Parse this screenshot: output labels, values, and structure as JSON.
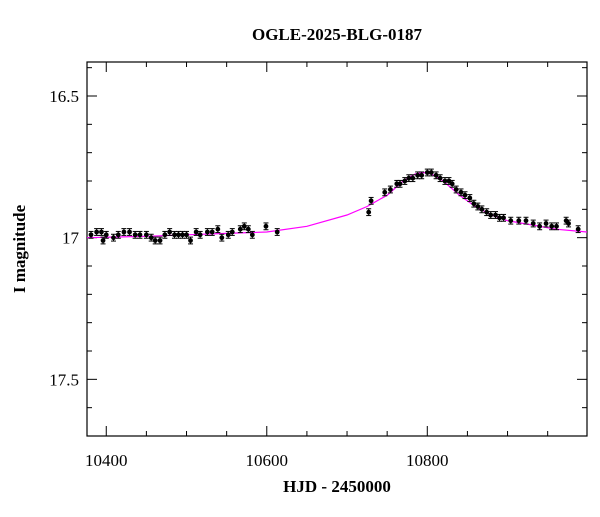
{
  "chart_data": {
    "type": "scatter",
    "title": "OGLE-2025-BLG-0187",
    "xlabel": "HJD - 2450000",
    "ylabel": "I magnitude",
    "xlim": [
      10376,
      10999
    ],
    "ylim": [
      17.7,
      16.38
    ],
    "xticks": [
      10400,
      10600,
      10800
    ],
    "xminor": [
      10450,
      10500,
      10550,
      10650,
      10700,
      10750,
      10850,
      10900,
      10950
    ],
    "yticks": [
      16.5,
      17,
      17.5
    ],
    "yminor": [
      16.4,
      16.6,
      16.7,
      16.8,
      16.9,
      17.1,
      17.2,
      17.3,
      17.4,
      17.6
    ],
    "points": {
      "color": "#000000",
      "error": 0.012,
      "x": [
        10381,
        10388,
        10394,
        10396,
        10400,
        10409,
        10415,
        10422,
        10429,
        10436,
        10442,
        10450,
        10456,
        10461,
        10467,
        10473,
        10479,
        10485,
        10490,
        10495,
        10500,
        10505,
        10512,
        10517,
        10526,
        10532,
        10539,
        10544,
        10552,
        10557,
        10567,
        10572,
        10577,
        10582,
        10599,
        10613,
        10727,
        10730,
        10747,
        10754,
        10762,
        10766,
        10772,
        10777,
        10782,
        10788,
        10793,
        10800,
        10805,
        10811,
        10816,
        10822,
        10827,
        10831,
        10836,
        10842,
        10847,
        10853,
        10858,
        10863,
        10868,
        10874,
        10879,
        10885,
        10890,
        10895,
        10904,
        10914,
        10923,
        10932,
        10940,
        10948,
        10955,
        10961,
        10973,
        10976,
        10988
      ],
      "values": [
        16.99,
        16.98,
        16.98,
        17.01,
        16.99,
        17.0,
        16.99,
        16.98,
        16.98,
        16.99,
        16.99,
        16.99,
        17.0,
        17.01,
        17.01,
        16.99,
        16.98,
        16.99,
        16.99,
        16.99,
        16.99,
        17.01,
        16.98,
        16.99,
        16.98,
        16.98,
        16.97,
        17.0,
        16.99,
        16.98,
        16.97,
        16.96,
        16.97,
        16.99,
        16.96,
        16.98,
        16.91,
        16.87,
        16.84,
        16.83,
        16.81,
        16.81,
        16.8,
        16.79,
        16.79,
        16.78,
        16.78,
        16.77,
        16.77,
        16.78,
        16.79,
        16.8,
        16.8,
        16.81,
        16.83,
        16.84,
        16.85,
        16.86,
        16.88,
        16.89,
        16.9,
        16.91,
        16.92,
        16.92,
        16.93,
        16.93,
        16.94,
        16.94,
        16.94,
        16.95,
        16.96,
        16.95,
        16.96,
        16.96,
        16.94,
        16.95,
        16.97
      ]
    },
    "model": {
      "color": "#ff00ff",
      "x": [
        10376,
        10450,
        10500,
        10550,
        10600,
        10650,
        10700,
        10725,
        10750,
        10770,
        10785,
        10795,
        10805,
        10820,
        10840,
        10860,
        10880,
        10900,
        10930,
        10960,
        10999
      ],
      "values": [
        17.0,
        16.995,
        16.99,
        16.985,
        16.98,
        16.96,
        16.92,
        16.89,
        16.85,
        16.8,
        16.775,
        16.77,
        16.775,
        16.8,
        16.85,
        16.89,
        16.92,
        16.94,
        16.955,
        16.97,
        16.98
      ]
    }
  }
}
